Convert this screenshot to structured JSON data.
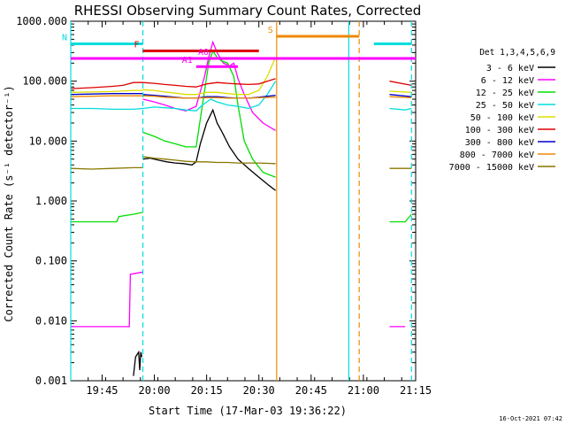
{
  "chart_data": {
    "type": "line",
    "title": "RHESSI Observing Summary Count Rates, Corrected",
    "xlabel": "Start Time (17-Mar-03 19:36:22)",
    "ylabel": "Corrected Count Rate (s⁻¹ detector⁻¹)",
    "footer_date": "16-Oct-2021 07:42",
    "y_scale": "log",
    "ylim": [
      0.001,
      1000
    ],
    "xlim_minutes": [
      19.6,
      21.25
    ],
    "y_ticks": [
      {
        "value": 1000,
        "label": "1000.000"
      },
      {
        "value": 100,
        "label": "100.000"
      },
      {
        "value": 10,
        "label": "10.000"
      },
      {
        "value": 1,
        "label": "1.000"
      },
      {
        "value": 0.1,
        "label": "0.100"
      },
      {
        "value": 0.01,
        "label": "0.010"
      },
      {
        "value": 0.001,
        "label": "0.001"
      }
    ],
    "x_ticks": [
      {
        "value": 19.75,
        "label": "19:45"
      },
      {
        "value": 20.0,
        "label": "20:00"
      },
      {
        "value": 20.25,
        "label": "20:15"
      },
      {
        "value": 20.5,
        "label": "20:30"
      },
      {
        "value": 20.75,
        "label": "20:45"
      },
      {
        "value": 21.0,
        "label": "21:00"
      },
      {
        "value": 21.25,
        "label": "21:15"
      }
    ],
    "legend_title": "Det 1,3,4,5,6,9",
    "legend_position": "right",
    "series": [
      {
        "name": "3 - 6 keV",
        "color": "#000000",
        "segments": [
          [
            [
              19.9,
              0.0012
            ],
            [
              19.91,
              0.0025
            ],
            [
              19.925,
              0.003
            ],
            [
              19.93,
              0.0015
            ],
            [
              19.935,
              0.003
            ],
            [
              19.94,
              0.0025
            ]
          ],
          [
            [
              19.945,
              5
            ],
            [
              19.98,
              5.2
            ],
            [
              20.02,
              4.8
            ],
            [
              20.06,
              4.5
            ],
            [
              20.1,
              4.3
            ],
            [
              20.14,
              4.2
            ],
            [
              20.18,
              4.0
            ],
            [
              20.2,
              4.5
            ],
            [
              20.22,
              9
            ],
            [
              20.25,
              20
            ],
            [
              20.28,
              33
            ],
            [
              20.3,
              20
            ],
            [
              20.32,
              15
            ],
            [
              20.36,
              8
            ],
            [
              20.4,
              5
            ],
            [
              20.45,
              3.5
            ],
            [
              20.5,
              2.5
            ],
            [
              20.55,
              1.8
            ],
            [
              20.58,
              1.5
            ]
          ]
        ]
      },
      {
        "name": "6 - 12 keV",
        "color": "#ff00ff",
        "segments": [
          [
            [
              19.6,
              0.008
            ],
            [
              19.8,
              0.008
            ],
            [
              19.88,
              0.008
            ],
            [
              19.885,
              0.06
            ],
            [
              19.945,
              0.065
            ]
          ],
          [
            [
              19.945,
              50
            ],
            [
              20.0,
              45
            ],
            [
              20.05,
              40
            ],
            [
              20.1,
              35
            ],
            [
              20.15,
              32
            ],
            [
              20.2,
              38
            ],
            [
              20.24,
              120
            ],
            [
              20.26,
              250
            ],
            [
              20.28,
              450
            ],
            [
              20.3,
              300
            ],
            [
              20.33,
              200
            ],
            [
              20.36,
              180
            ],
            [
              20.38,
              200
            ],
            [
              20.4,
              110
            ],
            [
              20.43,
              60
            ],
            [
              20.47,
              30
            ],
            [
              20.52,
              20
            ],
            [
              20.58,
              15
            ]
          ],
          [
            [
              21.125,
              0.008
            ],
            [
              21.2,
              0.008
            ]
          ]
        ]
      },
      {
        "name": "12 - 25 keV",
        "color": "#00dd00",
        "segments": [
          [
            [
              19.6,
              0.45
            ],
            [
              19.7,
              0.45
            ],
            [
              19.82,
              0.45
            ],
            [
              19.83,
              0.55
            ],
            [
              19.9,
              0.6
            ],
            [
              19.945,
              0.65
            ]
          ],
          [
            [
              19.945,
              14
            ],
            [
              20.0,
              12
            ],
            [
              20.05,
              10
            ],
            [
              20.1,
              9
            ],
            [
              20.15,
              8
            ],
            [
              20.2,
              8
            ],
            [
              20.23,
              40
            ],
            [
              20.26,
              200
            ],
            [
              20.28,
              320
            ],
            [
              20.3,
              250
            ],
            [
              20.32,
              220
            ],
            [
              20.35,
              200
            ],
            [
              20.38,
              120
            ],
            [
              20.4,
              40
            ],
            [
              20.43,
              10
            ],
            [
              20.47,
              5
            ],
            [
              20.52,
              3
            ],
            [
              20.58,
              2.5
            ]
          ],
          [
            [
              21.125,
              0.45
            ],
            [
              21.2,
              0.45
            ],
            [
              21.23,
              0.6
            ]
          ]
        ]
      },
      {
        "name": "25 - 50 keV",
        "color": "#00dddd",
        "segments": [
          [
            [
              19.6,
              35
            ],
            [
              19.7,
              35
            ],
            [
              19.8,
              34
            ],
            [
              19.9,
              34
            ],
            [
              19.945,
              35
            ]
          ],
          [
            [
              19.945,
              35
            ],
            [
              20.0,
              37
            ],
            [
              20.05,
              36
            ],
            [
              20.1,
              35
            ],
            [
              20.15,
              33
            ],
            [
              20.2,
              32
            ],
            [
              20.23,
              40
            ],
            [
              20.27,
              50
            ],
            [
              20.3,
              45
            ],
            [
              20.35,
              40
            ],
            [
              20.4,
              38
            ],
            [
              20.45,
              35
            ],
            [
              20.5,
              40
            ],
            [
              20.54,
              60
            ],
            [
              20.58,
              100
            ]
          ],
          [
            [
              21.125,
              35
            ],
            [
              21.2,
              33
            ],
            [
              21.23,
              35
            ]
          ]
        ]
      },
      {
        "name": "50 - 100 keV",
        "color": "#dddd00",
        "segments": [
          [
            [
              19.6,
              65
            ],
            [
              19.7,
              66
            ],
            [
              19.8,
              67
            ],
            [
              19.9,
              70
            ],
            [
              19.945,
              70
            ]
          ],
          [
            [
              19.945,
              72
            ],
            [
              20.0,
              70
            ],
            [
              20.05,
              66
            ],
            [
              20.1,
              63
            ],
            [
              20.15,
              60
            ],
            [
              20.2,
              60
            ],
            [
              20.25,
              65
            ],
            [
              20.3,
              65
            ],
            [
              20.35,
              62
            ],
            [
              20.4,
              60
            ],
            [
              20.45,
              60
            ],
            [
              20.5,
              70
            ],
            [
              20.54,
              120
            ],
            [
              20.58,
              250
            ]
          ],
          [
            [
              21.125,
              68
            ],
            [
              21.23,
              65
            ]
          ]
        ]
      },
      {
        "name": "100 - 300 keV",
        "color": "#dd0000",
        "segments": [
          [
            [
              19.6,
              75
            ],
            [
              19.7,
              78
            ],
            [
              19.8,
              82
            ],
            [
              19.85,
              85
            ],
            [
              19.9,
              95
            ],
            [
              19.945,
              95
            ]
          ],
          [
            [
              19.945,
              95
            ],
            [
              20.0,
              92
            ],
            [
              20.05,
              88
            ],
            [
              20.1,
              85
            ],
            [
              20.15,
              82
            ],
            [
              20.2,
              80
            ],
            [
              20.25,
              90
            ],
            [
              20.3,
              95
            ],
            [
              20.35,
              92
            ],
            [
              20.4,
              90
            ],
            [
              20.45,
              88
            ],
            [
              20.5,
              90
            ],
            [
              20.54,
              100
            ],
            [
              20.58,
              110
            ]
          ],
          [
            [
              21.125,
              100
            ],
            [
              21.23,
              85
            ]
          ]
        ]
      },
      {
        "name": "300 - 800 keV",
        "color": "#0000cc",
        "segments": [
          [
            [
              19.6,
              60
            ],
            [
              19.7,
              61
            ],
            [
              19.8,
              62
            ],
            [
              19.9,
              62
            ],
            [
              19.945,
              62
            ]
          ],
          [
            [
              19.945,
              60
            ],
            [
              20.0,
              58
            ],
            [
              20.05,
              56
            ],
            [
              20.1,
              54
            ],
            [
              20.15,
              52
            ],
            [
              20.2,
              52
            ],
            [
              20.25,
              55
            ],
            [
              20.3,
              55
            ],
            [
              20.35,
              53
            ],
            [
              20.4,
              52
            ],
            [
              20.45,
              52
            ],
            [
              20.5,
              54
            ],
            [
              20.58,
              58
            ]
          ],
          [
            [
              21.125,
              60
            ],
            [
              21.23,
              55
            ]
          ]
        ]
      },
      {
        "name": "800 - 7000 keV",
        "color": "#ee8800",
        "segments": [
          [
            [
              19.6,
              55
            ],
            [
              19.7,
              56
            ],
            [
              19.8,
              57
            ],
            [
              19.9,
              57
            ],
            [
              19.945,
              57
            ]
          ],
          [
            [
              19.945,
              57
            ],
            [
              20.0,
              56
            ],
            [
              20.05,
              54
            ],
            [
              20.1,
              53
            ],
            [
              20.15,
              52
            ],
            [
              20.2,
              52
            ],
            [
              20.25,
              53
            ],
            [
              20.3,
              53
            ],
            [
              20.35,
              52
            ],
            [
              20.4,
              52
            ],
            [
              20.45,
              52
            ],
            [
              20.5,
              53
            ],
            [
              20.58,
              54
            ]
          ],
          [
            [
              21.125,
              55
            ],
            [
              21.23,
              53
            ]
          ]
        ]
      },
      {
        "name": "7000 - 15000 keV",
        "color": "#887700",
        "segments": [
          [
            [
              19.6,
              3.5
            ],
            [
              19.7,
              3.4
            ],
            [
              19.8,
              3.5
            ],
            [
              19.9,
              3.6
            ],
            [
              19.945,
              3.6
            ]
          ],
          [
            [
              19.945,
              5.5
            ],
            [
              20.0,
              5.2
            ],
            [
              20.05,
              5.0
            ],
            [
              20.1,
              4.8
            ],
            [
              20.15,
              4.6
            ],
            [
              20.2,
              4.5
            ],
            [
              20.25,
              4.5
            ],
            [
              20.3,
              4.4
            ],
            [
              20.35,
              4.4
            ],
            [
              20.4,
              4.3
            ],
            [
              20.45,
              4.3
            ],
            [
              20.5,
              4.3
            ],
            [
              20.58,
              4.2
            ]
          ],
          [
            [
              21.125,
              3.5
            ],
            [
              21.23,
              3.5
            ]
          ]
        ]
      }
    ],
    "state_bars": [
      {
        "label": "N",
        "color": "#00dddd",
        "y_value": 420,
        "ranges": [
          [
            19.6,
            19.945
          ],
          [
            21.05,
            21.23
          ]
        ]
      },
      {
        "label": "F",
        "color": "#dd0000",
        "y_value": 320,
        "ranges": [
          [
            19.945,
            20.5
          ]
        ]
      },
      {
        "label": "S",
        "color": "#ee8800",
        "y_value": 560,
        "ranges": [
          [
            20.585,
            20.98
          ]
        ]
      },
      {
        "label": "AO",
        "color": "#ff00ff",
        "y_value": 240,
        "ranges": [
          [
            19.6,
            21.25
          ]
        ]
      },
      {
        "label": "A1",
        "color": "#ff00ff",
        "y_value": 175,
        "ranges": [
          [
            20.2,
            20.4
          ]
        ]
      }
    ],
    "vertical_markers": [
      {
        "x": 19.6,
        "color": "#00dddd",
        "style": "solid"
      },
      {
        "x": 19.945,
        "color": "#00dddd",
        "style": "dashed"
      },
      {
        "x": 20.585,
        "color": "#ee8800",
        "style": "solid"
      },
      {
        "x": 20.93,
        "color": "#00dddd",
        "style": "solid"
      },
      {
        "x": 20.98,
        "color": "#ee8800",
        "style": "dashed"
      },
      {
        "x": 21.23,
        "color": "#00dddd",
        "style": "dashed"
      }
    ]
  }
}
